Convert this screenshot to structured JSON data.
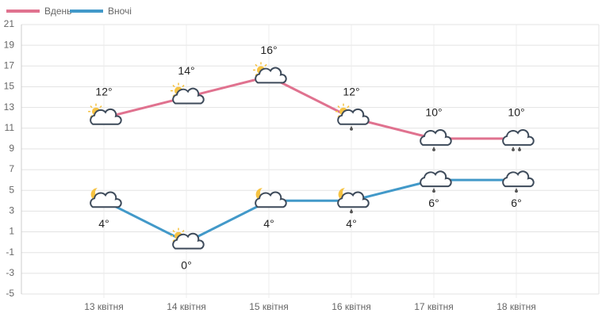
{
  "chart_data": {
    "type": "line",
    "categories": [
      "13 квітня",
      "14 квітня",
      "15 квітня",
      "16 квітня",
      "17 квітня",
      "18 квітня"
    ],
    "series": [
      {
        "name": "Вдень",
        "color": "#e0728f",
        "values": [
          12,
          14,
          16,
          12,
          10,
          10
        ],
        "value_labels": [
          "12°",
          "14°",
          "16°",
          "12°",
          "10°",
          "10°"
        ]
      },
      {
        "name": "Вночі",
        "color": "#4299c9",
        "values": [
          4,
          0,
          4,
          4,
          6,
          6
        ],
        "value_labels": [
          "4°",
          "0°",
          "4°",
          "4°",
          "6°",
          "6°"
        ]
      }
    ],
    "ylim": [
      -5,
      21
    ],
    "yticks": [
      -5,
      -3,
      -1,
      1,
      3,
      5,
      7,
      9,
      11,
      13,
      15,
      17,
      19,
      21
    ],
    "grid": true
  }
}
